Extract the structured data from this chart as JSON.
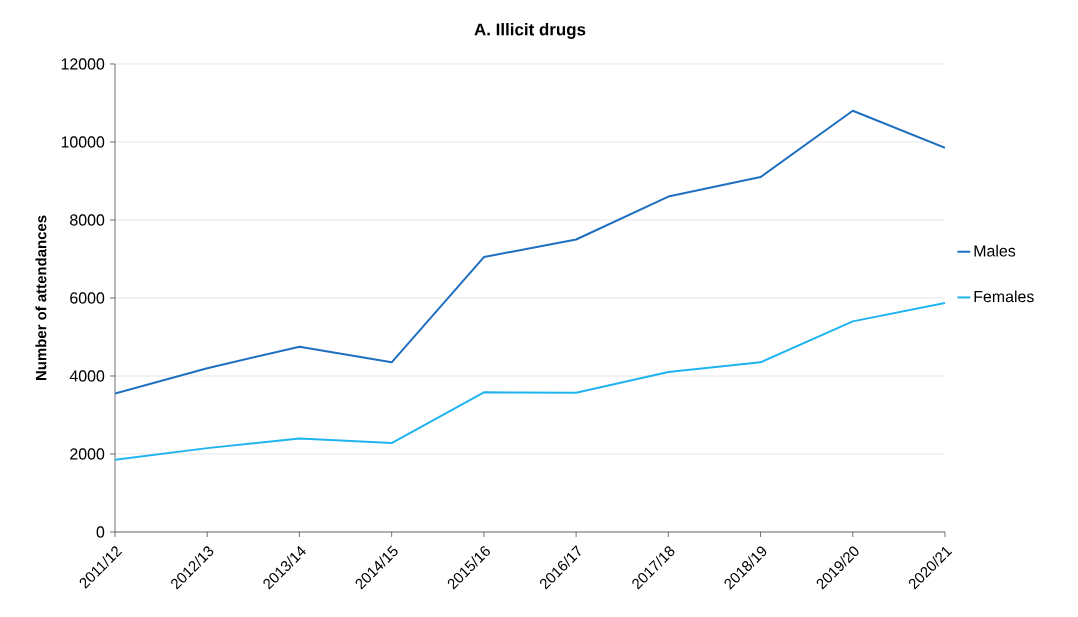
{
  "chart_data": {
    "type": "line",
    "title": "A. Illicit drugs",
    "ylabel": "Number of attendances",
    "categories": [
      "2011/12",
      "2012/13",
      "2013/14",
      "2014/15",
      "2015/16",
      "2016/17",
      "2017/18",
      "2018/19",
      "2019/20",
      "2020/21"
    ],
    "series": [
      {
        "name": "Males",
        "color": "#1f6fc0",
        "values": [
          3550,
          4200,
          4750,
          4350,
          7050,
          7500,
          8600,
          9100,
          10800,
          9850
        ]
      },
      {
        "name": "Females",
        "color": "#1fb4f0",
        "values": [
          1850,
          2150,
          2400,
          2280,
          3580,
          3570,
          4100,
          4350,
          5400,
          5870
        ]
      }
    ],
    "ylim": [
      0,
      12000
    ],
    "yticks": [
      0,
      2000,
      4000,
      6000,
      8000,
      10000,
      12000
    ],
    "grid": "y",
    "legend": "right",
    "marker": "none",
    "line_style": "solid"
  }
}
